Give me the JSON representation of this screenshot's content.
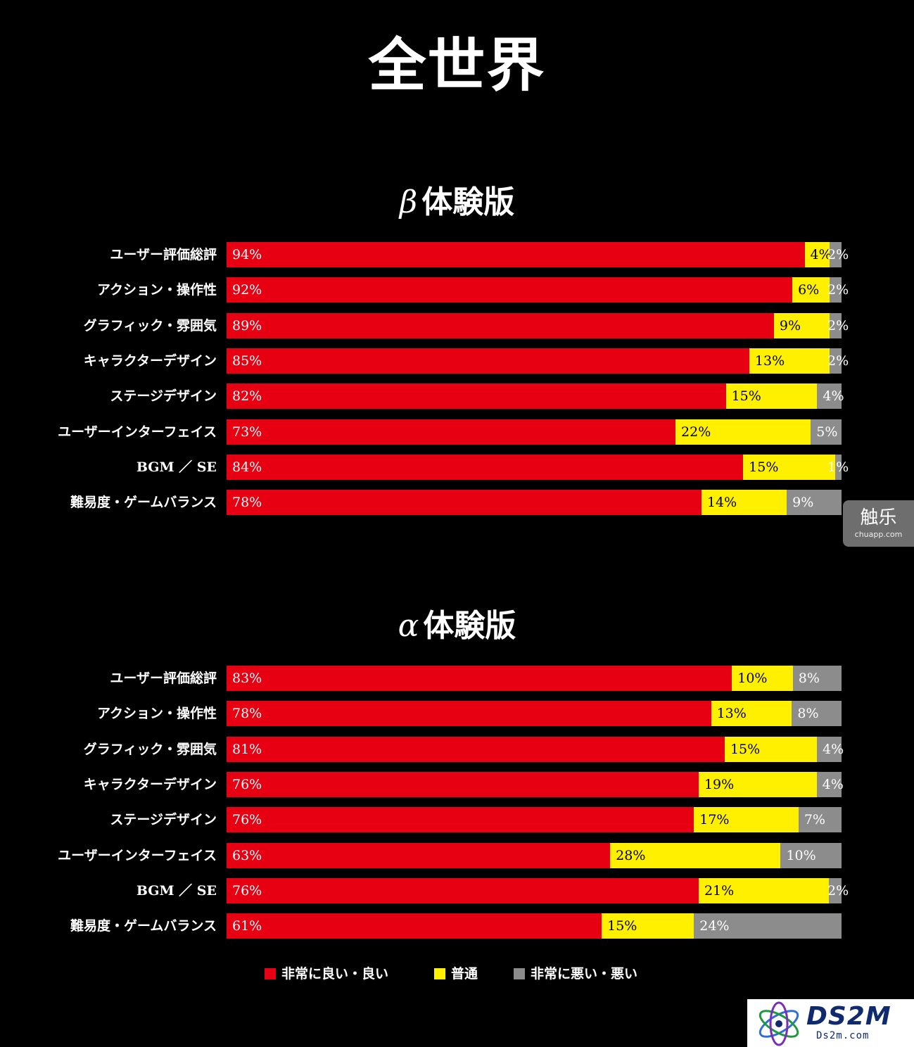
{
  "main_title": "全世界",
  "legend": {
    "good": "非常に良い・良い",
    "average": "普通",
    "bad": "非常に悪い・悪い"
  },
  "colors": {
    "good": "#e60012",
    "average": "#fff000",
    "bad": "#8c8c8c",
    "background": "#000000"
  },
  "watermarks": {
    "chuapp": {
      "name": "触乐",
      "url": "chuapp.com"
    },
    "ds2m": {
      "name": "DS2M",
      "url": "Ds2m.com"
    }
  },
  "chart_data": [
    {
      "type": "bar",
      "stacked": true,
      "orientation": "horizontal",
      "title_prefix": "β",
      "title": "体験版",
      "categories": [
        "ユーザー評価総評",
        "アクション・操作性",
        "グラフィック・雰囲気",
        "キャラクターデザイン",
        "ステージデザイン",
        "ユーザーインターフェイス",
        "BGM ／ SE",
        "難易度・ゲームバランス"
      ],
      "series": [
        {
          "name": "非常に良い・良い",
          "values": [
            94,
            92,
            89,
            85,
            82,
            73,
            84,
            78
          ],
          "labels": [
            "94%",
            "92%",
            "89%",
            "85%",
            "82%",
            "73%",
            "84%",
            "78%"
          ]
        },
        {
          "name": "普通",
          "values": [
            4,
            6,
            9,
            13,
            15,
            22,
            15,
            14
          ],
          "labels": [
            "4%",
            "6%",
            "9%",
            "13%",
            "15%",
            "22%",
            "15%",
            "14%"
          ]
        },
        {
          "name": "非常に悪い・悪い",
          "values": [
            2,
            2,
            2,
            2,
            4,
            5,
            1,
            9
          ],
          "labels": [
            "2%",
            "2%",
            "2%",
            "2%",
            "4%",
            "5%",
            "1%",
            "9%"
          ]
        }
      ],
      "xlim": [
        0,
        100
      ]
    },
    {
      "type": "bar",
      "stacked": true,
      "orientation": "horizontal",
      "title_prefix": "α",
      "title": "体験版",
      "categories": [
        "ユーザー評価総評",
        "アクション・操作性",
        "グラフィック・雰囲気",
        "キャラクターデザイン",
        "ステージデザイン",
        "ユーザーインターフェイス",
        "BGM ／ SE",
        "難易度・ゲームバランス"
      ],
      "series": [
        {
          "name": "非常に良い・良い",
          "values": [
            83,
            78,
            81,
            76,
            76,
            63,
            76,
            61
          ],
          "labels": [
            "83%",
            "78%",
            "81%",
            "76%",
            "76%",
            "63%",
            "76%",
            "61%"
          ]
        },
        {
          "name": "普通",
          "values": [
            10,
            13,
            15,
            19,
            17,
            28,
            21,
            15
          ],
          "labels": [
            "10%",
            "13%",
            "15%",
            "19%",
            "17%",
            "28%",
            "21%",
            "15%"
          ]
        },
        {
          "name": "非常に悪い・悪い",
          "values": [
            8,
            8,
            4,
            4,
            7,
            10,
            2,
            24
          ],
          "labels": [
            "8%",
            "8%",
            "4%",
            "4%",
            "7%",
            "10%",
            "2%",
            "24%"
          ]
        }
      ],
      "xlim": [
        0,
        100
      ]
    }
  ]
}
